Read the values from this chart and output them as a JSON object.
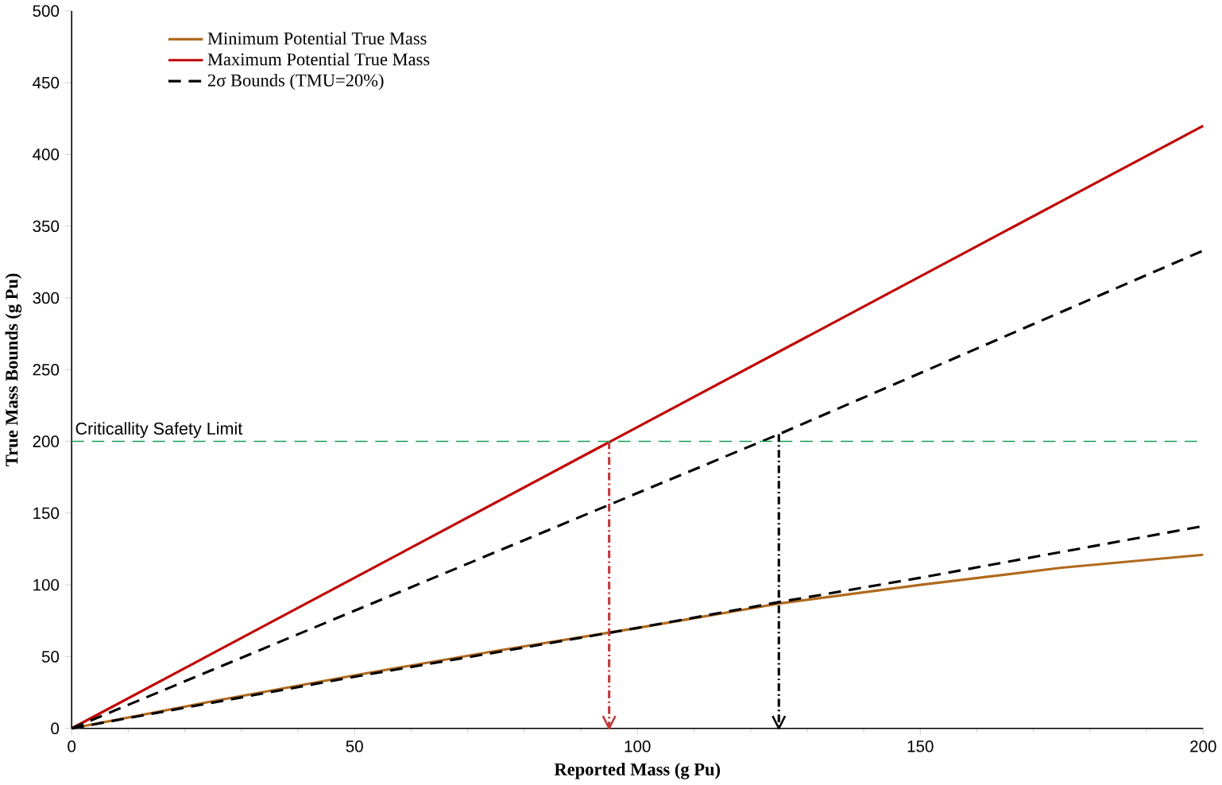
{
  "chart_data": {
    "type": "line",
    "xlabel": "Reported Mass (g Pu)",
    "ylabel": "True Mass Bounds (g Pu)",
    "xlim": [
      0,
      200
    ],
    "xticks": [
      0,
      50,
      100,
      150,
      200
    ],
    "ylim": [
      0,
      500
    ],
    "yticks": [
      0,
      50,
      100,
      150,
      200,
      250,
      300,
      350,
      400,
      450,
      500
    ],
    "grid": false,
    "legend": "top left",
    "series": [
      {
        "name": "Minimum Potential True Mass",
        "color": "#b06a1e",
        "line_style": "solid",
        "x": [
          0,
          25,
          50,
          75,
          100,
          125,
          150,
          175,
          200
        ],
        "values": [
          0,
          19,
          37,
          54,
          70,
          87,
          100,
          112,
          121
        ]
      },
      {
        "name": "Maximum Potential True Mass",
        "color": "#c00000",
        "line_style": "solid",
        "x": [
          0,
          200
        ],
        "values": [
          0,
          420
        ]
      },
      {
        "name": "2σ Bounds (TMU=20%)",
        "color": "#000000",
        "line_style": "dashed",
        "x": [
          0,
          125,
          200
        ],
        "values": [
          0,
          205,
          333
        ]
      },
      {
        "color": "#000000",
        "line_style": "dashed",
        "x": [
          0,
          50,
          100,
          125,
          150,
          200
        ],
        "values": [
          0,
          36,
          70,
          88,
          105,
          141
        ]
      },
      {
        "color": "#c0393b",
        "line_style": "dashdot",
        "x": [
          95,
          95
        ],
        "values": [
          200,
          0
        ]
      },
      {
        "color": "#000000",
        "line_style": "dashdot",
        "x": [
          125,
          125
        ],
        "values": [
          205,
          0
        ]
      }
    ],
    "ref_lines": [
      {
        "axis": "y",
        "value": 200,
        "label": "Criticallity Safety Limit",
        "color": "#1a9a5a",
        "line_style": "dashed"
      }
    ]
  }
}
